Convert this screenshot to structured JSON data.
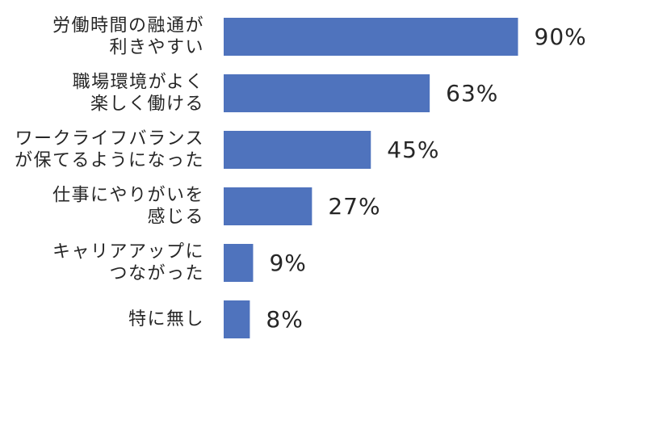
{
  "chart_data": {
    "type": "bar",
    "orientation": "horizontal",
    "title": "",
    "xlabel": "",
    "ylabel": "",
    "categories": [
      [
        "労働時間の融通が",
        "利きやすい"
      ],
      [
        "職場環境がよく",
        "楽しく働ける"
      ],
      [
        "ワークライフバランス",
        "が保てるようになった"
      ],
      [
        "仕事にやりがいを",
        "感じる"
      ],
      [
        "キャリアアップに",
        "つながった"
      ],
      [
        "特に無し"
      ]
    ],
    "values": [
      90,
      63,
      45,
      27,
      9,
      8
    ],
    "value_labels": [
      "90%",
      "63%",
      "45%",
      "27%",
      "9%",
      "8%"
    ],
    "xlim": [
      0,
      100
    ],
    "grid": false,
    "legend": "none",
    "colors": {
      "bar": "#4f73bd",
      "text": "#262626"
    }
  }
}
